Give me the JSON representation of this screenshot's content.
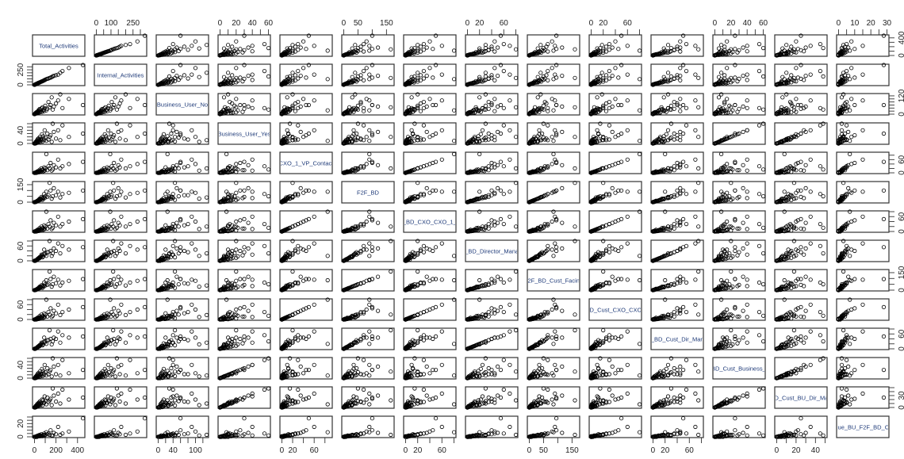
{
  "chart_data": {
    "type": "scatter",
    "subtype": "scatterplot-matrix",
    "grid": false,
    "marker": "open-circle",
    "marker_color": "#000000",
    "label_color": "#1e3a78",
    "variables": [
      {
        "label": "Total_Activities",
        "range": [
          0,
          450
        ],
        "tick_step": 100,
        "x_tick_labels": [
          "0",
          "200",
          "400"
        ],
        "y_tick_labels": [
          "0",
          "400"
        ]
      },
      {
        "label": "Internal_Activities",
        "range": [
          0,
          330
        ],
        "tick_step": 50,
        "x_tick_labels": [
          "0",
          "100",
          "250"
        ],
        "y_tick_labels": [
          "0",
          "250"
        ]
      },
      {
        "label": "Business_User_No",
        "range": [
          0,
          130
        ],
        "tick_step": 20,
        "x_tick_labels": [
          "0",
          "40",
          "100"
        ],
        "y_tick_labels": [
          "0",
          "120"
        ]
      },
      {
        "label": "Business_User_Yes",
        "range": [
          0,
          60
        ],
        "tick_step": 10,
        "x_tick_labels": [
          "0",
          "20",
          "40",
          "60"
        ],
        "y_tick_labels": [
          "0",
          "40"
        ]
      },
      {
        "label": "_CXO_1_VP_Contact_",
        "range": [
          0,
          90
        ],
        "tick_step": 20,
        "x_tick_labels": [
          "0",
          "20",
          "60"
        ],
        "y_tick_labels": [
          "0",
          "60"
        ]
      },
      {
        "label": "F2F_BD",
        "range": [
          0,
          170
        ],
        "tick_step": 50,
        "x_tick_labels": [
          "0",
          "50",
          "150"
        ],
        "y_tick_labels": [
          "0",
          "150"
        ]
      },
      {
        "label": "F_BD_CXO_CXO_1_V",
        "range": [
          0,
          80
        ],
        "tick_step": 20,
        "x_tick_labels": [
          "0",
          "20",
          "60"
        ],
        "y_tick_labels": [
          "0",
          "60"
        ]
      },
      {
        "label": "F_BD_Director_Manag",
        "range": [
          0,
          80
        ],
        "tick_step": 20,
        "x_tick_labels": [
          "0",
          "20",
          "60"
        ],
        "y_tick_labels": [
          "0",
          "60"
        ]
      },
      {
        "label": "F2F_BD_Cust_Facing",
        "range": [
          0,
          170
        ],
        "tick_step": 50,
        "x_tick_labels": [
          "0",
          "50",
          "150"
        ],
        "y_tick_labels": [
          "0",
          "150"
        ]
      },
      {
        "label": "BD_Cust_CXO_CXO_",
        "range": [
          0,
          80
        ],
        "tick_step": 20,
        "x_tick_labels": [
          "0",
          "20",
          "60"
        ],
        "y_tick_labels": [
          "0",
          "60"
        ]
      },
      {
        "label": "F_BD_Cust_Dir_Mana",
        "range": [
          0,
          80
        ],
        "tick_step": 20,
        "x_tick_labels": [
          "0",
          "20",
          "60"
        ],
        "y_tick_labels": [
          "0",
          "60"
        ]
      },
      {
        "label": "_BD_Cust_Business_U",
        "range": [
          0,
          60
        ],
        "tick_step": 10,
        "x_tick_labels": [
          "0",
          "20",
          "40",
          "60"
        ],
        "y_tick_labels": [
          "0",
          "40"
        ]
      },
      {
        "label": "BD_Cust_BU_Dir_Man",
        "range": [
          0,
          50
        ],
        "tick_step": 10,
        "x_tick_labels": [
          "0",
          "20",
          "40"
        ],
        "y_tick_labels": [
          "0",
          "30"
        ]
      },
      {
        "label": "ique_BU_F2F_BD_Cu",
        "range": [
          0,
          30
        ],
        "tick_step": 5,
        "x_tick_labels": [
          "0",
          "10",
          "20",
          "30"
        ],
        "y_tick_labels": [
          "0",
          "20"
        ]
      }
    ],
    "observations": [
      [
        450,
        330,
        60,
        30,
        50,
        100,
        50,
        55,
        95,
        50,
        50,
        25,
        25,
        28
      ],
      [
        320,
        280,
        100,
        20,
        40,
        80,
        40,
        45,
        80,
        40,
        45,
        15,
        20,
        8
      ],
      [
        260,
        230,
        40,
        55,
        30,
        70,
        30,
        60,
        65,
        30,
        55,
        55,
        45,
        5
      ],
      [
        240,
        200,
        130,
        10,
        20,
        40,
        20,
        30,
        40,
        18,
        25,
        8,
        10,
        3
      ],
      [
        220,
        170,
        90,
        40,
        60,
        90,
        60,
        70,
        90,
        60,
        70,
        40,
        35,
        15
      ],
      [
        200,
        160,
        70,
        15,
        25,
        60,
        25,
        40,
        60,
        25,
        40,
        12,
        15,
        4
      ],
      [
        180,
        150,
        50,
        35,
        35,
        120,
        35,
        50,
        115,
        35,
        45,
        35,
        30,
        6
      ],
      [
        170,
        140,
        30,
        60,
        15,
        50,
        15,
        30,
        50,
        15,
        30,
        60,
        48,
        2
      ],
      [
        160,
        130,
        110,
        5,
        10,
        30,
        10,
        20,
        30,
        10,
        18,
        5,
        6,
        2
      ],
      [
        150,
        120,
        60,
        25,
        45,
        100,
        45,
        40,
        95,
        45,
        40,
        25,
        22,
        10
      ],
      [
        140,
        115,
        45,
        20,
        20,
        165,
        20,
        80,
        160,
        20,
        75,
        20,
        18,
        3
      ],
      [
        130,
        105,
        80,
        12,
        30,
        60,
        30,
        35,
        55,
        30,
        35,
        12,
        14,
        5
      ],
      [
        120,
        100,
        35,
        30,
        12,
        45,
        12,
        35,
        45,
        12,
        35,
        30,
        25,
        4
      ],
      [
        110,
        95,
        25,
        8,
        85,
        90,
        80,
        20,
        85,
        80,
        20,
        8,
        8,
        7
      ],
      [
        100,
        85,
        55,
        18,
        20,
        50,
        20,
        30,
        50,
        20,
        30,
        18,
        16,
        3
      ],
      [
        95,
        80,
        40,
        40,
        10,
        35,
        10,
        25,
        35,
        10,
        25,
        40,
        28,
        2
      ],
      [
        90,
        75,
        20,
        10,
        25,
        70,
        25,
        45,
        65,
        25,
        45,
        10,
        12,
        5
      ],
      [
        85,
        70,
        30,
        15,
        8,
        40,
        8,
        28,
        38,
        8,
        28,
        15,
        12,
        2
      ],
      [
        80,
        66,
        25,
        22,
        15,
        30,
        15,
        18,
        30,
        15,
        18,
        22,
        18,
        3
      ],
      [
        75,
        62,
        45,
        6,
        5,
        20,
        5,
        14,
        20,
        5,
        14,
        6,
        5,
        1
      ],
      [
        70,
        58,
        15,
        28,
        12,
        35,
        12,
        22,
        35,
        12,
        22,
        28,
        20,
        2
      ],
      [
        65,
        54,
        38,
        10,
        20,
        45,
        20,
        25,
        42,
        20,
        25,
        10,
        10,
        4
      ],
      [
        60,
        50,
        20,
        14,
        6,
        25,
        6,
        18,
        24,
        6,
        18,
        14,
        12,
        1
      ],
      [
        55,
        46,
        28,
        5,
        10,
        28,
        10,
        16,
        28,
        10,
        16,
        5,
        5,
        2
      ],
      [
        50,
        42,
        12,
        20,
        4,
        18,
        4,
        12,
        18,
        4,
        12,
        20,
        15,
        1
      ],
      [
        48,
        40,
        34,
        8,
        14,
        30,
        14,
        15,
        30,
        14,
        15,
        8,
        8,
        3
      ],
      [
        45,
        38,
        22,
        12,
        3,
        15,
        3,
        10,
        15,
        3,
        10,
        12,
        10,
        1
      ],
      [
        40,
        34,
        10,
        16,
        8,
        22,
        8,
        12,
        22,
        8,
        12,
        16,
        12,
        2
      ],
      [
        38,
        32,
        26,
        4,
        6,
        16,
        6,
        10,
        16,
        6,
        10,
        4,
        4,
        1
      ],
      [
        35,
        30,
        18,
        9,
        2,
        12,
        2,
        8,
        12,
        2,
        8,
        9,
        7,
        1
      ],
      [
        32,
        28,
        8,
        14,
        5,
        14,
        5,
        9,
        14,
        5,
        9,
        14,
        10,
        2
      ],
      [
        30,
        25,
        16,
        6,
        3,
        10,
        3,
        7,
        10,
        3,
        7,
        6,
        5,
        1
      ],
      [
        28,
        24,
        12,
        3,
        7,
        12,
        7,
        5,
        12,
        7,
        5,
        3,
        3,
        1
      ],
      [
        25,
        21,
        6,
        10,
        1,
        8,
        1,
        6,
        8,
        1,
        6,
        10,
        8,
        0
      ],
      [
        22,
        19,
        14,
        2,
        4,
        9,
        4,
        4,
        9,
        4,
        4,
        2,
        2,
        1
      ],
      [
        20,
        17,
        9,
        7,
        2,
        6,
        2,
        4,
        6,
        2,
        4,
        7,
        5,
        0
      ],
      [
        18,
        15,
        5,
        4,
        0,
        5,
        0,
        3,
        5,
        0,
        3,
        4,
        3,
        1
      ],
      [
        15,
        13,
        11,
        1,
        3,
        4,
        3,
        2,
        4,
        3,
        2,
        1,
        1,
        0
      ],
      [
        12,
        10,
        7,
        5,
        1,
        3,
        1,
        2,
        3,
        1,
        2,
        5,
        4,
        0
      ],
      [
        10,
        8,
        3,
        2,
        0,
        2,
        0,
        1,
        2,
        0,
        1,
        2,
        2,
        0
      ],
      [
        8,
        7,
        5,
        0,
        1,
        1,
        1,
        0,
        1,
        1,
        0,
        0,
        0,
        0
      ],
      [
        5,
        4,
        2,
        1,
        0,
        1,
        0,
        1,
        1,
        0,
        1,
        1,
        1,
        0
      ],
      [
        3,
        2,
        1,
        0,
        0,
        0,
        0,
        0,
        0,
        0,
        0,
        0,
        0,
        0
      ],
      [
        0,
        0,
        0,
        0,
        0,
        0,
        0,
        0,
        0,
        0,
        0,
        0,
        0,
        0
      ]
    ]
  }
}
